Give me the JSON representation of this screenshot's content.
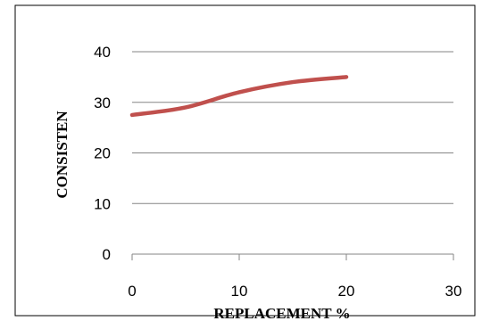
{
  "chart_data": {
    "type": "line",
    "title": "",
    "xlabel": "REPLACEMENT %",
    "ylabel": "CONSISTEN",
    "xlim": [
      0,
      30
    ],
    "ylim": [
      0,
      40
    ],
    "x_ticks": [
      "0",
      "10",
      "20",
      "30"
    ],
    "y_ticks": [
      "0",
      "10",
      "20",
      "30",
      "40"
    ],
    "grid": "horizontal",
    "legend": "none",
    "series": [
      {
        "x": [
          0,
          5,
          10,
          15,
          20
        ],
        "values": [
          27.5,
          29,
          32,
          34,
          35
        ],
        "color": "#c0504d"
      }
    ]
  }
}
